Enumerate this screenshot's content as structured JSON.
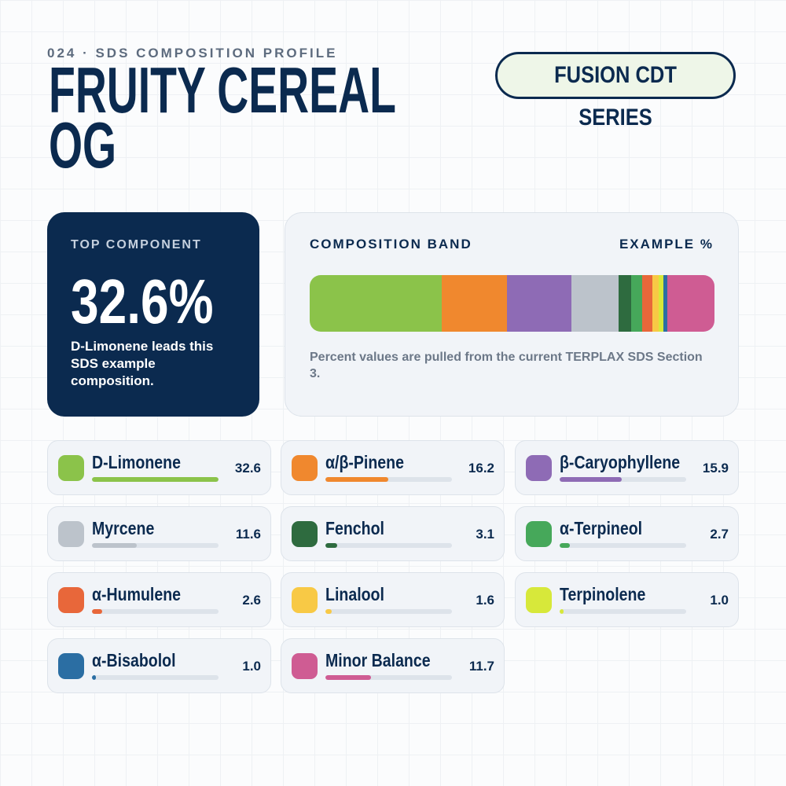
{
  "header": {
    "eyebrow": "024 · SDS COMPOSITION PROFILE",
    "title": "FRUITY CEREAL OG",
    "badge": "FUSION CDT SERIES"
  },
  "top": {
    "label": "TOP COMPONENT",
    "value": "32.6%",
    "note": "D-Limonene leads this SDS example composition."
  },
  "band": {
    "label": "COMPOSITION BAND",
    "unit_label": "EXAMPLE %",
    "note": "Percent values are pulled from the current TERPLAX SDS Section 3."
  },
  "items": [
    {
      "name": "D-Limonene",
      "value": 32.6,
      "color": "#8bc34a"
    },
    {
      "name": "α/β-Pinene",
      "value": 16.2,
      "color": "#f0882e"
    },
    {
      "name": "β-Caryophyllene",
      "value": 15.9,
      "color": "#8e6bb5"
    },
    {
      "name": "Myrcene",
      "value": 11.6,
      "color": "#bcc3cb"
    },
    {
      "name": "Fenchol",
      "value": 3.1,
      "color": "#2e6b3f"
    },
    {
      "name": "α-Terpineol",
      "value": 2.7,
      "color": "#46a85a"
    },
    {
      "name": "α-Humulene",
      "value": 2.6,
      "color": "#e8673a"
    },
    {
      "name": "Linalool",
      "value": 1.6,
      "color": "#f8c945"
    },
    {
      "name": "Terpinolene",
      "value": 1,
      "value_label": "1.0",
      "color": "#d7e83a"
    },
    {
      "name": "α-Bisabolol",
      "value": 1,
      "value_label": "1.0",
      "color": "#2b6ea3"
    },
    {
      "name": "Minor Balance",
      "value": 11.7,
      "color": "#cf5c93"
    }
  ]
}
